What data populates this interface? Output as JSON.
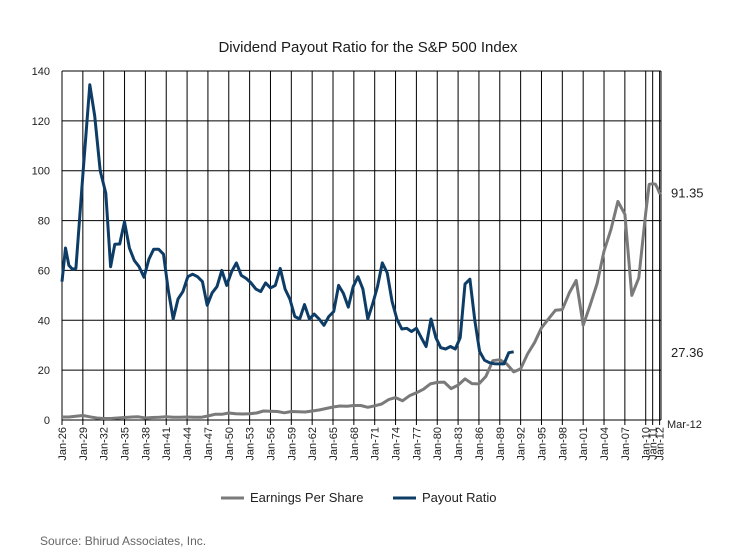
{
  "chart_data": {
    "type": "line",
    "title": "Dividend Payout Ratio for the S&P 500 Index",
    "ylim": [
      0,
      140
    ],
    "y_ticks": [
      0,
      20,
      40,
      60,
      80,
      100,
      120,
      140
    ],
    "x_range": [
      1926,
      2012.2
    ],
    "x_ticks": [
      {
        "label": "Jan-26",
        "x": 1926
      },
      {
        "label": "Jan-29",
        "x": 1929
      },
      {
        "label": "Jan-32",
        "x": 1932
      },
      {
        "label": "Jan-35",
        "x": 1935
      },
      {
        "label": "Jan-38",
        "x": 1938
      },
      {
        "label": "Jan-41",
        "x": 1941
      },
      {
        "label": "Jan-44",
        "x": 1944
      },
      {
        "label": "Jan-47",
        "x": 1947
      },
      {
        "label": "Jan-50",
        "x": 1950
      },
      {
        "label": "Jan-53",
        "x": 1953
      },
      {
        "label": "Jan-56",
        "x": 1956
      },
      {
        "label": "Jan-59",
        "x": 1959
      },
      {
        "label": "Jan-62",
        "x": 1962
      },
      {
        "label": "Jan-65",
        "x": 1965
      },
      {
        "label": "Jan-68",
        "x": 1968
      },
      {
        "label": "Jan-71",
        "x": 1971
      },
      {
        "label": "Jan-74",
        "x": 1974
      },
      {
        "label": "Jan-77",
        "x": 1977
      },
      {
        "label": "Jan-80",
        "x": 1980
      },
      {
        "label": "Jan-83",
        "x": 1983
      },
      {
        "label": "Jan-86",
        "x": 1986
      },
      {
        "label": "Jan-89",
        "x": 1989
      },
      {
        "label": "Jan-92",
        "x": 1992
      },
      {
        "label": "Jan-95",
        "x": 1995
      },
      {
        "label": "Jan-98",
        "x": 1998
      },
      {
        "label": "Jan-01",
        "x": 2001
      },
      {
        "label": "Jan-04",
        "x": 2004
      },
      {
        "label": "Jan-07",
        "x": 2007
      },
      {
        "label": "Jan-10",
        "x": 2010
      },
      {
        "label": "Jan-11",
        "x": 2011
      },
      {
        "label": "Jan-12",
        "x": 2012
      }
    ],
    "end_tick_label": "Mar-12",
    "grid": true,
    "legend_position": "bottom",
    "series": [
      {
        "name": "Earnings Per Share",
        "color": "#7a7a7a",
        "end_label": "91.35",
        "points": [
          [
            1926,
            1.2
          ],
          [
            1927,
            1.2
          ],
          [
            1928,
            1.5
          ],
          [
            1929,
            1.8
          ],
          [
            1930,
            1.3
          ],
          [
            1931,
            0.8
          ],
          [
            1932,
            0.6
          ],
          [
            1933,
            0.6
          ],
          [
            1934,
            0.8
          ],
          [
            1935,
            1.0
          ],
          [
            1936,
            1.2
          ],
          [
            1937,
            1.3
          ],
          [
            1938,
            0.8
          ],
          [
            1939,
            1.0
          ],
          [
            1940,
            1.1
          ],
          [
            1941,
            1.3
          ],
          [
            1942,
            1.1
          ],
          [
            1943,
            1.1
          ],
          [
            1944,
            1.2
          ],
          [
            1945,
            1.1
          ],
          [
            1946,
            1.1
          ],
          [
            1947,
            1.6
          ],
          [
            1948,
            2.3
          ],
          [
            1949,
            2.3
          ],
          [
            1950,
            2.8
          ],
          [
            1951,
            2.5
          ],
          [
            1952,
            2.4
          ],
          [
            1953,
            2.5
          ],
          [
            1954,
            2.8
          ],
          [
            1955,
            3.6
          ],
          [
            1956,
            3.5
          ],
          [
            1957,
            3.4
          ],
          [
            1958,
            2.9
          ],
          [
            1959,
            3.4
          ],
          [
            1960,
            3.3
          ],
          [
            1961,
            3.2
          ],
          [
            1962,
            3.6
          ],
          [
            1963,
            4.0
          ],
          [
            1964,
            4.6
          ],
          [
            1965,
            5.2
          ],
          [
            1966,
            5.6
          ],
          [
            1967,
            5.5
          ],
          [
            1968,
            5.8
          ],
          [
            1969,
            5.8
          ],
          [
            1970,
            5.1
          ],
          [
            1971,
            5.7
          ],
          [
            1972,
            6.4
          ],
          [
            1973,
            8.2
          ],
          [
            1974,
            9.0
          ],
          [
            1975,
            7.7
          ],
          [
            1976,
            9.7
          ],
          [
            1977,
            10.9
          ],
          [
            1978,
            12.3
          ],
          [
            1979,
            14.5
          ],
          [
            1980,
            15.1
          ],
          [
            1981,
            15.2
          ],
          [
            1982,
            12.6
          ],
          [
            1983,
            14.0
          ],
          [
            1984,
            16.5
          ],
          [
            1985,
            14.6
          ],
          [
            1986,
            14.5
          ],
          [
            1987,
            17.5
          ],
          [
            1988,
            23.8
          ],
          [
            1989,
            24.2
          ],
          [
            1990,
            22.5
          ],
          [
            1991,
            19.3
          ],
          [
            1992,
            20.5
          ],
          [
            1993,
            26.5
          ],
          [
            1994,
            31.0
          ],
          [
            1995,
            37.0
          ],
          [
            1996,
            40.5
          ],
          [
            1997,
            44.0
          ],
          [
            1998,
            44.3
          ],
          [
            1999,
            51.0
          ],
          [
            2000,
            56.0
          ],
          [
            2001,
            38.0
          ],
          [
            2002,
            46.0
          ],
          [
            2003,
            54.7
          ],
          [
            2004,
            67.7
          ],
          [
            2005,
            76.5
          ],
          [
            2006,
            87.7
          ],
          [
            2007,
            82.5
          ],
          [
            2008,
            50.0
          ],
          [
            2009,
            57.0
          ],
          [
            2010,
            83.0
          ],
          [
            2010.5,
            94.5
          ],
          [
            2011,
            94.8
          ],
          [
            2011.4,
            94.6
          ],
          [
            2011.7,
            93.0
          ],
          [
            2012,
            91.0
          ],
          [
            2012.2,
            91.35
          ]
        ]
      },
      {
        "name": "Payout Ratio",
        "color": "#0d3d66",
        "end_label": "27.36",
        "points": [
          [
            1926,
            55.5
          ],
          [
            1926.5,
            69.0
          ],
          [
            1927,
            62.0
          ],
          [
            1927.5,
            60.5
          ],
          [
            1928,
            60.8
          ],
          [
            1929,
            98.0
          ],
          [
            1930,
            134.5
          ],
          [
            1930.7,
            122.0
          ],
          [
            1931.5,
            100.0
          ],
          [
            1932.3,
            91.0
          ],
          [
            1933,
            61.5
          ],
          [
            1933.6,
            70.5
          ],
          [
            1934.3,
            70.6
          ],
          [
            1935,
            79.5
          ],
          [
            1935.7,
            69.0
          ],
          [
            1936.4,
            64.0
          ],
          [
            1937.1,
            61.5
          ],
          [
            1937.8,
            57.3
          ],
          [
            1938.5,
            64.5
          ],
          [
            1939.2,
            68.5
          ],
          [
            1939.9,
            68.5
          ],
          [
            1940.6,
            66.5
          ],
          [
            1941.3,
            52.0
          ],
          [
            1942,
            40.5
          ],
          [
            1942.7,
            48.5
          ],
          [
            1943.4,
            51.5
          ],
          [
            1944.1,
            57.5
          ],
          [
            1944.8,
            58.5
          ],
          [
            1945.5,
            57.5
          ],
          [
            1946.2,
            55.5
          ],
          [
            1946.9,
            46.0
          ],
          [
            1947.6,
            51.0
          ],
          [
            1948.3,
            53.5
          ],
          [
            1949,
            60.0
          ],
          [
            1949.7,
            54.0
          ],
          [
            1950.4,
            59.5
          ],
          [
            1951.1,
            63.0
          ],
          [
            1951.8,
            58.0
          ],
          [
            1952.5,
            56.8
          ],
          [
            1953.2,
            55.0
          ],
          [
            1953.9,
            52.5
          ],
          [
            1954.6,
            51.5
          ],
          [
            1955.3,
            55.0
          ],
          [
            1956,
            53.0
          ],
          [
            1956.7,
            54.0
          ],
          [
            1957.4,
            60.8
          ],
          [
            1958.1,
            52.5
          ],
          [
            1958.8,
            48.5
          ],
          [
            1959.5,
            41.5
          ],
          [
            1960.2,
            40.5
          ],
          [
            1960.9,
            46.3
          ],
          [
            1961.6,
            40.5
          ],
          [
            1962.3,
            42.5
          ],
          [
            1963,
            40.5
          ],
          [
            1963.7,
            38.0
          ],
          [
            1964.4,
            41.5
          ],
          [
            1965.1,
            43.5
          ],
          [
            1965.8,
            54.0
          ],
          [
            1966.5,
            50.8
          ],
          [
            1967.2,
            45.3
          ],
          [
            1967.9,
            53.5
          ],
          [
            1968.6,
            57.5
          ],
          [
            1969.3,
            52.5
          ],
          [
            1970,
            40.5
          ],
          [
            1970.7,
            46.5
          ],
          [
            1971.4,
            53.5
          ],
          [
            1972.1,
            63.0
          ],
          [
            1972.8,
            59.0
          ],
          [
            1973.5,
            47.5
          ],
          [
            1974.2,
            40.5
          ],
          [
            1974.9,
            36.5
          ],
          [
            1975.6,
            36.8
          ],
          [
            1976.3,
            35.5
          ],
          [
            1977,
            36.8
          ],
          [
            1977.7,
            33.0
          ],
          [
            1978.4,
            29.5
          ],
          [
            1979.1,
            40.5
          ],
          [
            1979.8,
            33.0
          ],
          [
            1980.5,
            29.0
          ],
          [
            1981.2,
            28.5
          ],
          [
            1981.9,
            29.5
          ],
          [
            1982.6,
            28.5
          ],
          [
            1983.3,
            33.0
          ],
          [
            1984,
            54.5
          ],
          [
            1984.7,
            56.5
          ],
          [
            1985.4,
            40.0
          ],
          [
            1986.1,
            27.5
          ],
          [
            1986.8,
            24.0
          ],
          [
            1987.5,
            23.0
          ],
          [
            1988.2,
            22.6
          ],
          [
            1988.9,
            22.5
          ],
          [
            1989.6,
            22.5
          ],
          [
            1990.3,
            27.0
          ],
          [
            1991,
            27.36
          ]
        ]
      }
    ]
  },
  "source": "Source: Bhirud Associates, Inc."
}
